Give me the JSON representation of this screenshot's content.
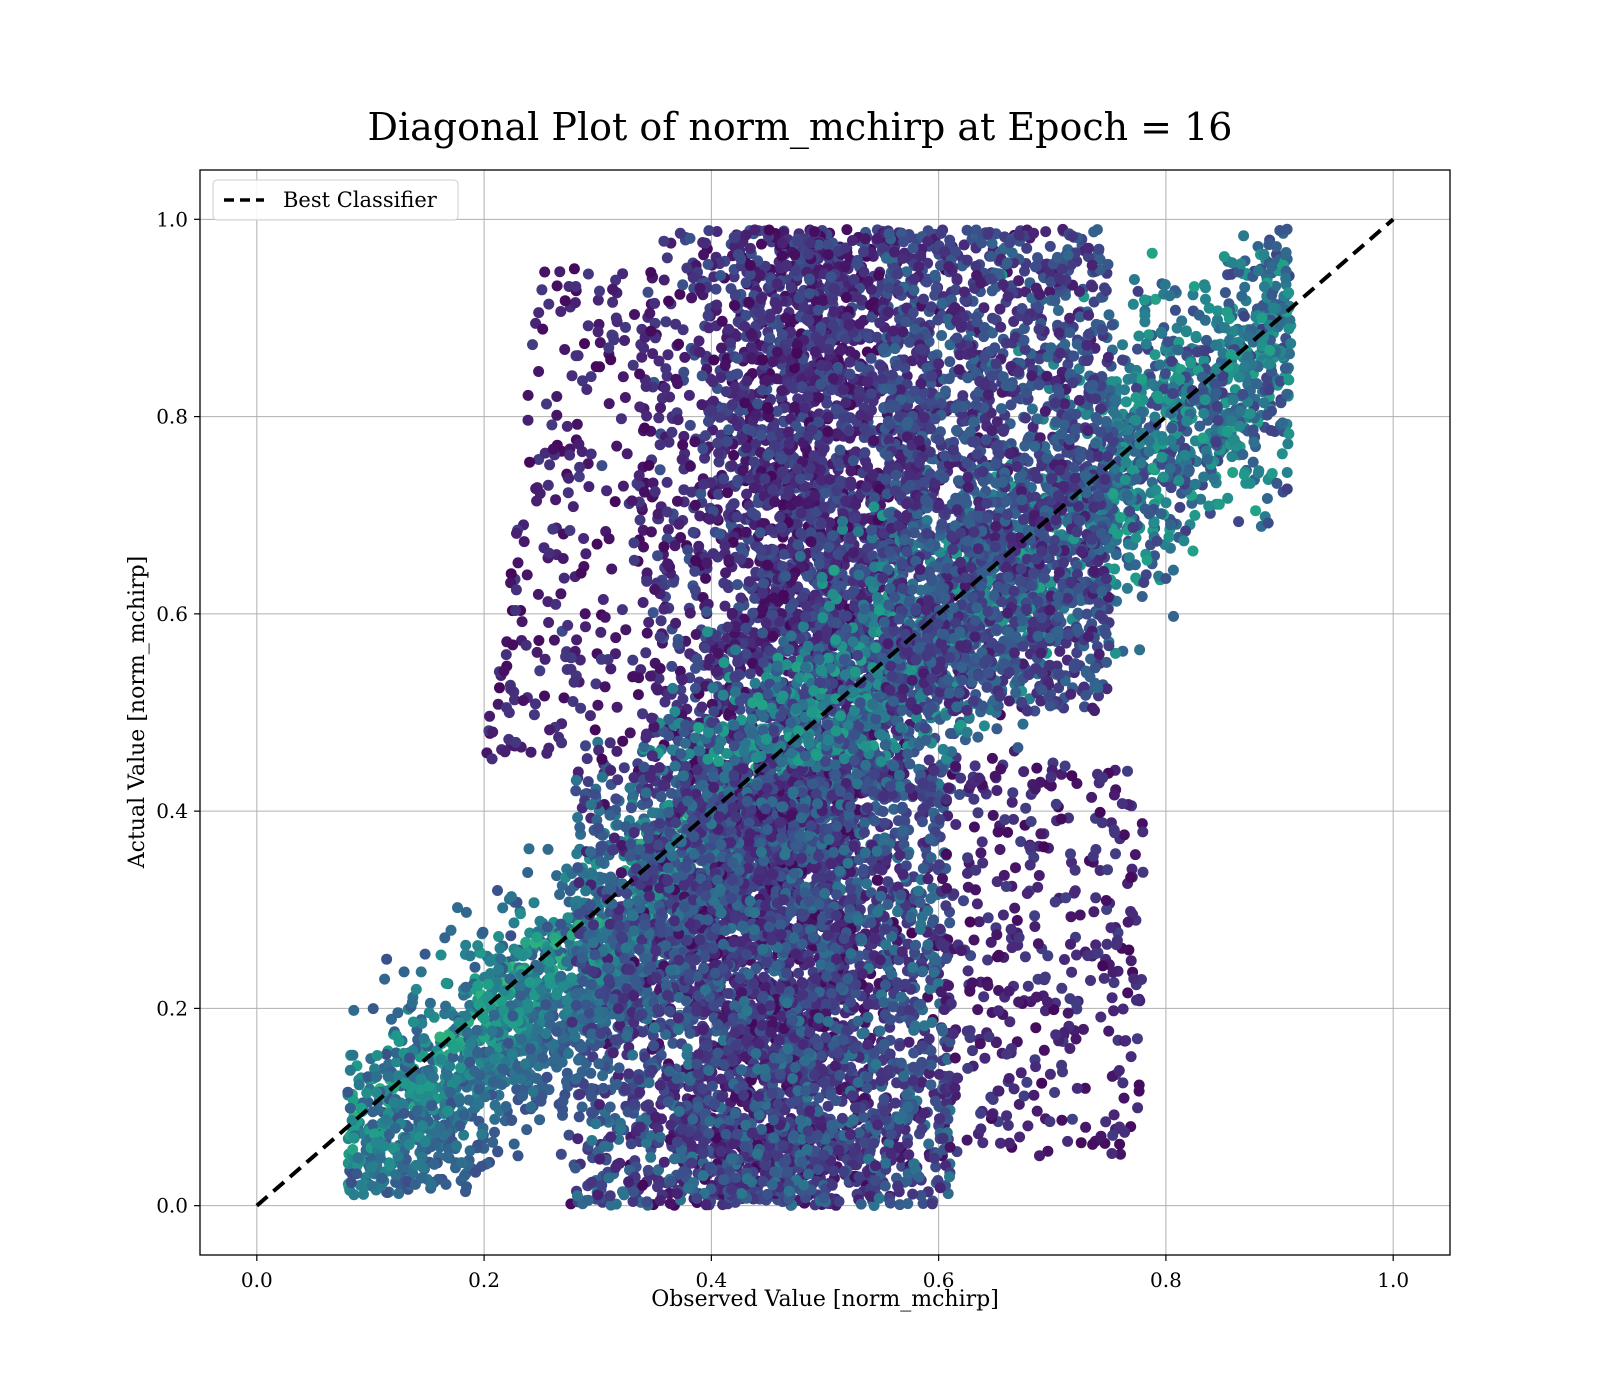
{
  "chart_data": {
    "type": "scatter",
    "title": "Diagonal Plot of norm_mchirp at Epoch = 16",
    "xlabel": "Observed Value [norm_mchirp]",
    "ylabel": "Actual Value [norm_mchirp]",
    "xlim": [
      -0.05,
      1.05
    ],
    "ylim": [
      -0.05,
      1.05
    ],
    "x_ticks": [
      "0.0",
      "0.2",
      "0.4",
      "0.6",
      "0.8",
      "1.0"
    ],
    "y_ticks": [
      "0.0",
      "0.2",
      "0.4",
      "0.6",
      "0.8",
      "1.0"
    ],
    "x_tick_values": [
      0.0,
      0.2,
      0.4,
      0.6,
      0.8,
      1.0
    ],
    "y_tick_values": [
      0.0,
      0.2,
      0.4,
      0.6,
      0.8,
      1.0
    ],
    "grid": true,
    "colormap": "viridis",
    "legend": {
      "placement": "top-left",
      "entries": [
        "Best Classifier"
      ]
    },
    "series": [
      {
        "name": "Best Classifier",
        "type": "line",
        "style": "dashed",
        "color": "#000000",
        "x": [
          0.0,
          1.0
        ],
        "y": [
          0.0,
          1.0
        ]
      }
    ],
    "clusters": [
      {
        "x": [
          0.07,
          0.42
        ],
        "y": [
          0.0,
          0.45
        ],
        "density": "high",
        "color_range": "teal-green",
        "note": "below 0.4 follows diagonal"
      },
      {
        "x": [
          0.33,
          0.62
        ],
        "y": [
          0.0,
          0.99
        ],
        "density": "very high",
        "color_range": "dark purple"
      },
      {
        "x": [
          0.55,
          0.91
        ],
        "y": [
          0.45,
          0.99
        ],
        "density": "high",
        "color_range": "blue-teal"
      },
      {
        "x": [
          0.6,
          0.82
        ],
        "y": [
          0.05,
          0.45
        ],
        "density": "sparse",
        "color_range": "dark purple"
      }
    ]
  },
  "colors": {
    "axes": "#000000",
    "grid": "#b0b0b0",
    "viridis_dark": "#440154",
    "viridis_mid": "#31688e",
    "viridis_teal": "#21918c",
    "viridis_green": "#35b779",
    "viridis_light": "#b5de2b"
  }
}
